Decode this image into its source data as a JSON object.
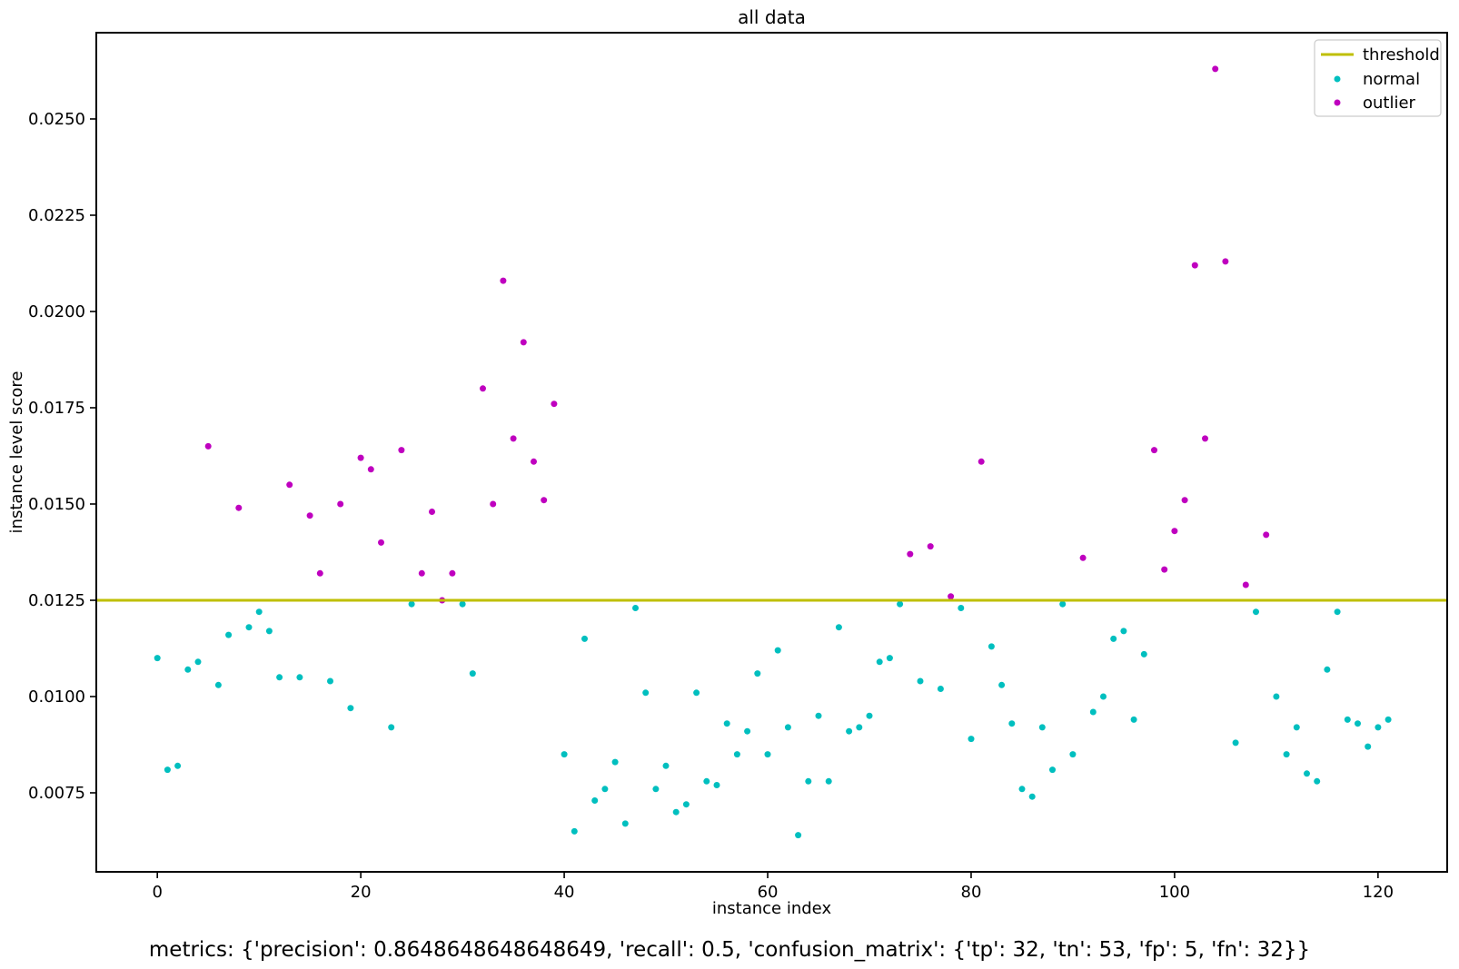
{
  "chart_data": {
    "type": "scatter",
    "title": "all data",
    "xlabel": "instance index",
    "ylabel": "instance level score",
    "caption": "metrics: {'precision': 0.8648648648648649, 'recall': 0.5, 'confusion_matrix': {'tp': 32, 'tn': 53, 'fp': 5, 'fn': 32}}",
    "metrics": {
      "precision": 0.8648648648648649,
      "recall": 0.5,
      "confusion_matrix": {
        "tp": 32,
        "tn": 53,
        "fp": 5,
        "fn": 32
      }
    },
    "grid": false,
    "legend_position": "upper right",
    "xlim": [
      -6.0,
      126.8
    ],
    "ylim": [
      0.005448,
      0.02724
    ],
    "threshold": 0.0125,
    "colors": {
      "threshold": "#BFBF00",
      "normal": "#00BFBF",
      "outlier": "#BF00BF",
      "spine": "#000000",
      "legend_border": "#cccccc"
    },
    "xticks": [
      {
        "v": 0,
        "label": "0"
      },
      {
        "v": 20,
        "label": "20"
      },
      {
        "v": 40,
        "label": "40"
      },
      {
        "v": 60,
        "label": "60"
      },
      {
        "v": 80,
        "label": "80"
      },
      {
        "v": 100,
        "label": "100"
      },
      {
        "v": 120,
        "label": "120"
      }
    ],
    "yticks": [
      {
        "v": 0.0075,
        "label": "0.0075"
      },
      {
        "v": 0.01,
        "label": "0.0100"
      },
      {
        "v": 0.0125,
        "label": "0.0125"
      },
      {
        "v": 0.015,
        "label": "0.0150"
      },
      {
        "v": 0.0175,
        "label": "0.0175"
      },
      {
        "v": 0.02,
        "label": "0.0200"
      },
      {
        "v": 0.0225,
        "label": "0.0225"
      },
      {
        "v": 0.025,
        "label": "0.0250"
      }
    ],
    "legend": [
      {
        "label": "threshold",
        "type": "line",
        "color": "#BFBF00"
      },
      {
        "label": "normal",
        "type": "dot",
        "color": "#00BFBF"
      },
      {
        "label": "outlier",
        "type": "dot",
        "color": "#BF00BF"
      }
    ],
    "series": [
      {
        "name": "normal",
        "color": "#00BFBF",
        "points": [
          [
            0,
            0.011
          ],
          [
            1,
            0.0081
          ],
          [
            2,
            0.0082
          ],
          [
            3,
            0.0107
          ],
          [
            4,
            0.0109
          ],
          [
            6,
            0.0103
          ],
          [
            7,
            0.0116
          ],
          [
            9,
            0.0118
          ],
          [
            10,
            0.0122
          ],
          [
            11,
            0.0117
          ],
          [
            12,
            0.0105
          ],
          [
            14,
            0.0105
          ],
          [
            17,
            0.0104
          ],
          [
            19,
            0.0097
          ],
          [
            23,
            0.0092
          ],
          [
            25,
            0.0124
          ],
          [
            30,
            0.0124
          ],
          [
            31,
            0.0106
          ],
          [
            40,
            0.0085
          ],
          [
            41,
            0.0065
          ],
          [
            42,
            0.0115
          ],
          [
            43,
            0.0073
          ],
          [
            44,
            0.0076
          ],
          [
            45,
            0.0083
          ],
          [
            46,
            0.0067
          ],
          [
            47,
            0.0123
          ],
          [
            48,
            0.0101
          ],
          [
            49,
            0.0076
          ],
          [
            50,
            0.0082
          ],
          [
            51,
            0.007
          ],
          [
            52,
            0.0072
          ],
          [
            53,
            0.0101
          ],
          [
            54,
            0.0078
          ],
          [
            55,
            0.0077
          ],
          [
            56,
            0.0093
          ],
          [
            57,
            0.0085
          ],
          [
            58,
            0.0091
          ],
          [
            59,
            0.0106
          ],
          [
            60,
            0.0085
          ],
          [
            61,
            0.0112
          ],
          [
            62,
            0.0092
          ],
          [
            63,
            0.0064
          ],
          [
            64,
            0.0078
          ],
          [
            65,
            0.0095
          ],
          [
            66,
            0.0078
          ],
          [
            67,
            0.0118
          ],
          [
            68,
            0.0091
          ],
          [
            69,
            0.0092
          ],
          [
            70,
            0.0095
          ],
          [
            71,
            0.0109
          ],
          [
            72,
            0.011
          ],
          [
            73,
            0.0124
          ],
          [
            75,
            0.0104
          ],
          [
            77,
            0.0102
          ],
          [
            79,
            0.0123
          ],
          [
            80,
            0.0089
          ],
          [
            82,
            0.0113
          ],
          [
            83,
            0.0103
          ],
          [
            84,
            0.0093
          ],
          [
            85,
            0.0076
          ],
          [
            86,
            0.0074
          ],
          [
            87,
            0.0092
          ],
          [
            88,
            0.0081
          ],
          [
            89,
            0.0124
          ],
          [
            90,
            0.0085
          ],
          [
            92,
            0.0096
          ],
          [
            93,
            0.01
          ],
          [
            94,
            0.0115
          ],
          [
            95,
            0.0117
          ],
          [
            96,
            0.0094
          ],
          [
            97,
            0.0111
          ],
          [
            106,
            0.0088
          ],
          [
            108,
            0.0122
          ],
          [
            110,
            0.01
          ],
          [
            111,
            0.0085
          ],
          [
            112,
            0.0092
          ],
          [
            113,
            0.008
          ],
          [
            114,
            0.0078
          ],
          [
            115,
            0.0107
          ],
          [
            116,
            0.0122
          ],
          [
            117,
            0.0094
          ],
          [
            118,
            0.0093
          ],
          [
            119,
            0.0087
          ],
          [
            120,
            0.0092
          ],
          [
            121,
            0.0094
          ]
        ]
      },
      {
        "name": "outlier",
        "color": "#BF00BF",
        "points": [
          [
            5,
            0.0165
          ],
          [
            8,
            0.0149
          ],
          [
            13,
            0.0155
          ],
          [
            15,
            0.0147
          ],
          [
            16,
            0.0132
          ],
          [
            18,
            0.015
          ],
          [
            20,
            0.0162
          ],
          [
            21,
            0.0159
          ],
          [
            22,
            0.014
          ],
          [
            24,
            0.0164
          ],
          [
            26,
            0.0132
          ],
          [
            27,
            0.0148
          ],
          [
            28,
            0.0125
          ],
          [
            29,
            0.0132
          ],
          [
            32,
            0.018
          ],
          [
            33,
            0.015
          ],
          [
            34,
            0.0208
          ],
          [
            35,
            0.0167
          ],
          [
            36,
            0.0192
          ],
          [
            37,
            0.0161
          ],
          [
            38,
            0.0151
          ],
          [
            39,
            0.0176
          ],
          [
            74,
            0.0137
          ],
          [
            76,
            0.0139
          ],
          [
            78,
            0.0126
          ],
          [
            81,
            0.0161
          ],
          [
            91,
            0.0136
          ],
          [
            98,
            0.0164
          ],
          [
            99,
            0.0133
          ],
          [
            100,
            0.0143
          ],
          [
            101,
            0.0151
          ],
          [
            102,
            0.0212
          ],
          [
            103,
            0.0167
          ],
          [
            104,
            0.0263
          ],
          [
            105,
            0.0213
          ],
          [
            107,
            0.0129
          ],
          [
            109,
            0.0142
          ]
        ]
      }
    ]
  }
}
